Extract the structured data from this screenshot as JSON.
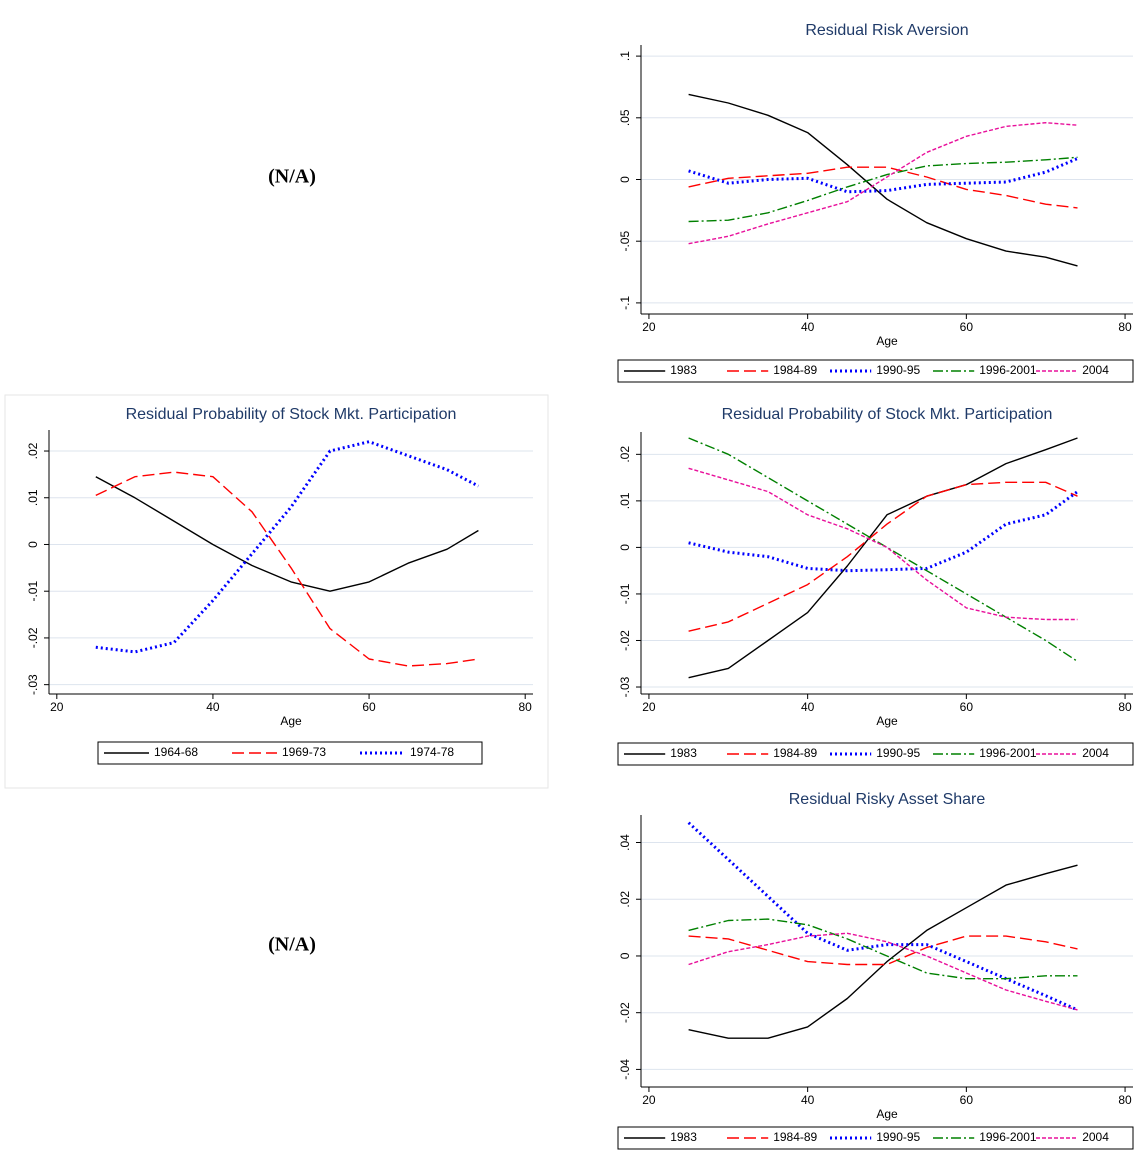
{
  "placeholders": [
    "(N/A)",
    "(N/A)"
  ],
  "chart_data": [
    {
      "type": "line",
      "title": "Residual Risk Aversion",
      "xlabel": "Age",
      "x": [
        25,
        30,
        35,
        40,
        45,
        50,
        55,
        60,
        65,
        70,
        74
      ],
      "xlim": [
        19,
        81
      ],
      "xticks": [
        20,
        40,
        60,
        80
      ],
      "ylim": [
        -0.109,
        0.109
      ],
      "yticks": [
        {
          "value": -0.1,
          "label": "-.1"
        },
        {
          "value": -0.05,
          "label": "-.05"
        },
        0,
        {
          "value": 0.05,
          "label": ".05"
        },
        {
          "value": 0.1,
          "label": ".1"
        }
      ],
      "grid": true,
      "series": [
        {
          "name": "1983",
          "color": "#000000",
          "dash": "solid",
          "values": [
            0.069,
            0.062,
            0.052,
            0.038,
            0.012,
            -0.016,
            -0.035,
            -0.048,
            -0.058,
            -0.063,
            -0.07
          ]
        },
        {
          "name": "1984-89",
          "color": "#ff0000",
          "dash": "longdash",
          "values": [
            -0.006,
            0.001,
            0.003,
            0.005,
            0.01,
            0.01,
            0.002,
            -0.008,
            -0.013,
            -0.02,
            -0.023
          ]
        },
        {
          "name": "1990-95",
          "color": "#0000ff",
          "dash": "dot",
          "values": [
            0.007,
            -0.003,
            0.0,
            0.001,
            -0.01,
            -0.009,
            -0.004,
            -0.003,
            -0.002,
            0.006,
            0.017
          ]
        },
        {
          "name": "1996-2001",
          "color": "#008000",
          "dash": "dashdot",
          "values": [
            -0.034,
            -0.033,
            -0.027,
            -0.017,
            -0.006,
            0.004,
            0.011,
            0.013,
            0.014,
            0.016,
            0.018
          ]
        },
        {
          "name": "2004",
          "color": "#e8109b",
          "dash": "shortdash",
          "values": [
            -0.052,
            -0.046,
            -0.036,
            -0.027,
            -0.018,
            0.002,
            0.022,
            0.035,
            0.043,
            0.046,
            0.044
          ]
        }
      ]
    },
    {
      "type": "line",
      "title": "Residual Probability of Stock Mkt. Participation",
      "xlabel": "Age",
      "x": [
        25,
        30,
        35,
        40,
        45,
        50,
        55,
        60,
        65,
        70,
        74
      ],
      "xlim": [
        19,
        81
      ],
      "xticks": [
        20,
        40,
        60,
        80
      ],
      "ylim": [
        -0.032,
        0.0245
      ],
      "yticks": [
        {
          "value": -0.03,
          "label": "-.03"
        },
        {
          "value": -0.02,
          "label": "-.02"
        },
        {
          "value": -0.01,
          "label": "-.01"
        },
        0,
        {
          "value": 0.01,
          "label": ".01"
        },
        {
          "value": 0.02,
          "label": ".02"
        }
      ],
      "grid": true,
      "series": [
        {
          "name": "1964-68",
          "color": "#000000",
          "dash": "solid",
          "values": [
            0.0145,
            0.01,
            0.005,
            0.0,
            -0.0045,
            -0.008,
            -0.01,
            -0.008,
            -0.004,
            -0.001,
            0.003
          ]
        },
        {
          "name": "1969-73",
          "color": "#ff0000",
          "dash": "longdash",
          "values": [
            0.0105,
            0.0145,
            0.0155,
            0.0145,
            0.007,
            -0.005,
            -0.018,
            -0.0245,
            -0.026,
            -0.0255,
            -0.0245
          ]
        },
        {
          "name": "1974-78",
          "color": "#0000ff",
          "dash": "dot",
          "values": [
            -0.022,
            -0.023,
            -0.021,
            -0.012,
            -0.002,
            0.008,
            0.02,
            0.022,
            0.019,
            0.016,
            0.0125
          ]
        }
      ]
    },
    {
      "type": "line",
      "title": "Residual Probability of Stock Mkt. Participation",
      "xlabel": "Age",
      "x": [
        25,
        30,
        35,
        40,
        45,
        50,
        55,
        60,
        65,
        70,
        74
      ],
      "xlim": [
        19,
        81
      ],
      "xticks": [
        20,
        40,
        60,
        80
      ],
      "ylim": [
        -0.0315,
        0.0248
      ],
      "yticks": [
        {
          "value": -0.03,
          "label": "-.03"
        },
        {
          "value": -0.02,
          "label": "-.02"
        },
        {
          "value": -0.01,
          "label": "-.01"
        },
        0,
        {
          "value": 0.01,
          "label": ".01"
        },
        {
          "value": 0.02,
          "label": ".02"
        }
      ],
      "grid": true,
      "series": [
        {
          "name": "1983",
          "color": "#000000",
          "dash": "solid",
          "values": [
            -0.028,
            -0.026,
            -0.02,
            -0.014,
            -0.004,
            0.007,
            0.011,
            0.0135,
            0.018,
            0.021,
            0.0235
          ]
        },
        {
          "name": "1984-89",
          "color": "#ff0000",
          "dash": "longdash",
          "values": [
            -0.018,
            -0.016,
            -0.012,
            -0.008,
            -0.002,
            0.005,
            0.011,
            0.0135,
            0.014,
            0.014,
            0.011
          ]
        },
        {
          "name": "1990-95",
          "color": "#0000ff",
          "dash": "dot",
          "values": [
            0.001,
            -0.001,
            -0.002,
            -0.0045,
            -0.005,
            -0.0048,
            -0.0045,
            -0.001,
            0.005,
            0.007,
            0.012
          ]
        },
        {
          "name": "1996-2001",
          "color": "#008000",
          "dash": "dashdot",
          "values": [
            0.0235,
            0.02,
            0.015,
            0.01,
            0.005,
            0.0,
            -0.005,
            -0.01,
            -0.015,
            -0.02,
            -0.0245
          ]
        },
        {
          "name": "2004",
          "color": "#e8109b",
          "dash": "shortdash",
          "values": [
            0.017,
            0.0145,
            0.012,
            0.007,
            0.004,
            0.0,
            -0.007,
            -0.013,
            -0.015,
            -0.0155,
            -0.0155
          ]
        }
      ]
    },
    {
      "type": "line",
      "title": "Residual Risky Asset Share",
      "xlabel": "Age",
      "x": [
        25,
        30,
        35,
        40,
        45,
        50,
        55,
        60,
        65,
        70,
        74
      ],
      "xlim": [
        19,
        81
      ],
      "xticks": [
        20,
        40,
        60,
        80
      ],
      "ylim": [
        -0.0462,
        0.0497
      ],
      "yticks": [
        {
          "value": -0.04,
          "label": "-.04"
        },
        {
          "value": -0.02,
          "label": "-.02"
        },
        0,
        {
          "value": 0.02,
          "label": ".02"
        },
        {
          "value": 0.04,
          "label": ".04"
        }
      ],
      "grid": true,
      "series": [
        {
          "name": "1983",
          "color": "#000000",
          "dash": "solid",
          "values": [
            -0.026,
            -0.029,
            -0.029,
            -0.025,
            -0.015,
            -0.002,
            0.009,
            0.017,
            0.025,
            0.029,
            0.032
          ]
        },
        {
          "name": "1984-89",
          "color": "#ff0000",
          "dash": "longdash",
          "values": [
            0.007,
            0.006,
            0.002,
            -0.002,
            -0.003,
            -0.003,
            0.003,
            0.007,
            0.007,
            0.005,
            0.0025
          ]
        },
        {
          "name": "1990-95",
          "color": "#0000ff",
          "dash": "dot",
          "values": [
            0.047,
            0.034,
            0.021,
            0.008,
            0.002,
            0.004,
            0.004,
            -0.002,
            -0.008,
            -0.014,
            -0.019
          ]
        },
        {
          "name": "1996-2001",
          "color": "#008000",
          "dash": "dashdot",
          "values": [
            0.009,
            0.0125,
            0.013,
            0.011,
            0.006,
            0.0,
            -0.006,
            -0.008,
            -0.008,
            -0.007,
            -0.007
          ]
        },
        {
          "name": "2004",
          "color": "#e8109b",
          "dash": "shortdash",
          "values": [
            -0.003,
            0.0015,
            0.004,
            0.007,
            0.008,
            0.005,
            0.0,
            -0.006,
            -0.012,
            -0.016,
            -0.019
          ]
        }
      ]
    }
  ]
}
